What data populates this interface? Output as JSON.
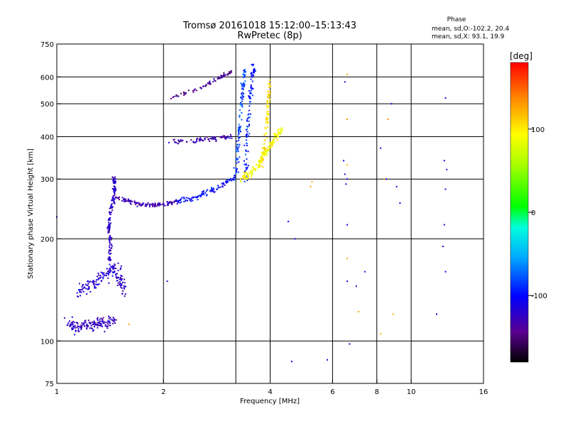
{
  "chart_data": {
    "type": "scatter",
    "title": "Tromsø 20161018 15:12:00–15:13:43",
    "subtitle": "RwPretec (8p)",
    "xlabel": "Frequency [MHz]",
    "ylabel": "Stationary phase Virtual Height [km]",
    "x_scale": "log",
    "y_scale": "log",
    "xlim": [
      1,
      16
    ],
    "ylim": [
      75,
      750
    ],
    "x_ticks": [
      1,
      2,
      4,
      6,
      8,
      10,
      16
    ],
    "x_tick_labels": [
      "1",
      "2",
      "4",
      "6",
      "8",
      "10",
      "16"
    ],
    "y_ticks": [
      75,
      100,
      200,
      300,
      400,
      500,
      600,
      750
    ],
    "y_tick_labels": [
      "75",
      "100",
      "200",
      "300",
      "400",
      "500",
      "600",
      "750"
    ],
    "x_gridlines": [
      2,
      3.2,
      4,
      6,
      8,
      10
    ],
    "y_gridlines": [
      100,
      200,
      300,
      400,
      500,
      600
    ],
    "grid": true,
    "phase_info": {
      "heading": "Phase",
      "line_o": "mean, sd,O:-102.2, 20.4",
      "line_x": "mean, sd,X:  93.1, 19.9"
    },
    "colorbar": {
      "label": "[deg]",
      "range": [
        -180,
        180
      ],
      "ticks": [
        100,
        0,
        -100
      ],
      "tick_labels": [
        "100",
        "0",
        "-100"
      ]
    },
    "series": [
      {
        "kind": "trace",
        "phase": -125,
        "points": [
          [
            1.08,
            115
          ],
          [
            1.12,
            108
          ],
          [
            1.18,
            112
          ],
          [
            1.25,
            110
          ],
          [
            1.32,
            114
          ],
          [
            1.38,
            111
          ],
          [
            1.45,
            116
          ]
        ],
        "spread": [
          0.04,
          0.05
        ]
      },
      {
        "kind": "trace",
        "phase": -120,
        "points": [
          [
            1.15,
            138
          ],
          [
            1.22,
            145
          ],
          [
            1.3,
            150
          ],
          [
            1.38,
            158
          ],
          [
            1.45,
            165
          ],
          [
            1.5,
            152
          ],
          [
            1.55,
            140
          ]
        ],
        "spread": [
          0.05,
          0.06
        ]
      },
      {
        "kind": "trace",
        "phase": -120,
        "points": [
          [
            1.4,
            170
          ],
          [
            1.42,
            190
          ],
          [
            1.4,
            215
          ],
          [
            1.42,
            240
          ],
          [
            1.45,
            265
          ],
          [
            1.46,
            290
          ],
          [
            1.45,
            300
          ]
        ],
        "spread": [
          0.015,
          0.03
        ]
      },
      {
        "kind": "trace",
        "phase": -130,
        "points": [
          [
            1.45,
            265
          ],
          [
            1.6,
            258
          ],
          [
            1.75,
            252
          ],
          [
            1.9,
            252
          ],
          [
            2.05,
            254
          ],
          [
            2.2,
            258
          ]
        ],
        "spread": [
          0.03,
          0.02
        ]
      },
      {
        "kind": "trace",
        "phase": -100,
        "points": [
          [
            2.2,
            258
          ],
          [
            2.45,
            265
          ],
          [
            2.7,
            275
          ],
          [
            2.95,
            290
          ],
          [
            3.2,
            305
          ]
        ],
        "spread": [
          0.025,
          0.03
        ]
      },
      {
        "kind": "trace",
        "phase": -85,
        "points": [
          [
            3.2,
            305
          ],
          [
            3.25,
            380
          ],
          [
            3.3,
            470
          ],
          [
            3.35,
            560
          ],
          [
            3.4,
            630
          ]
        ],
        "spread": [
          0.02,
          0.05
        ]
      },
      {
        "kind": "trace",
        "phase": -95,
        "points": [
          [
            3.4,
            300
          ],
          [
            3.45,
            400
          ],
          [
            3.5,
            500
          ],
          [
            3.55,
            600
          ],
          [
            3.6,
            640
          ]
        ],
        "spread": [
          0.02,
          0.05
        ]
      },
      {
        "kind": "trace",
        "phase": 90,
        "points": [
          [
            3.3,
            300
          ],
          [
            3.5,
            310
          ],
          [
            3.7,
            330
          ],
          [
            3.85,
            355
          ],
          [
            4.0,
            375
          ],
          [
            4.15,
            400
          ],
          [
            4.3,
            420
          ]
        ],
        "spread": [
          0.02,
          0.04
        ]
      },
      {
        "kind": "trace",
        "phase": 105,
        "points": [
          [
            3.8,
            330
          ],
          [
            3.9,
            420
          ],
          [
            3.95,
            500
          ],
          [
            4.0,
            590
          ]
        ],
        "spread": [
          0.015,
          0.05
        ]
      },
      {
        "kind": "trace",
        "phase": -140,
        "points": [
          [
            2.1,
            520
          ],
          [
            2.6,
            560
          ],
          [
            2.9,
            600
          ],
          [
            3.1,
            620
          ]
        ],
        "spread": [
          0.02,
          0.02
        ]
      },
      {
        "kind": "trace",
        "phase": -130,
        "points": [
          [
            2.1,
            385
          ],
          [
            2.5,
            390
          ],
          [
            2.8,
            395
          ],
          [
            3.1,
            400
          ]
        ],
        "spread": [
          0.02,
          0.02
        ]
      },
      {
        "kind": "isolated",
        "phase": -110,
        "points": [
          [
            6.45,
            340
          ],
          [
            6.5,
            310
          ],
          [
            6.6,
            300
          ],
          [
            6.55,
            290
          ],
          [
            6.6,
            220
          ],
          [
            6.5,
            580
          ],
          [
            8.2,
            370
          ],
          [
            8.5,
            300
          ],
          [
            9.1,
            285
          ],
          [
            9.3,
            255
          ],
          [
            8.8,
            500
          ],
          [
            12.5,
            520
          ],
          [
            12.4,
            340
          ],
          [
            12.6,
            320
          ],
          [
            12.5,
            280
          ],
          [
            12.4,
            220
          ],
          [
            12.3,
            190
          ],
          [
            12.5,
            160
          ],
          [
            11.8,
            120
          ],
          [
            6.6,
            150
          ],
          [
            7.0,
            145
          ],
          [
            7.4,
            160
          ],
          [
            4.5,
            225
          ],
          [
            4.7,
            200
          ],
          [
            5.8,
            88
          ],
          [
            6.7,
            98
          ],
          [
            4.6,
            87
          ],
          [
            2.05,
            150
          ],
          [
            1.0,
            232
          ]
        ]
      },
      {
        "kind": "isolated",
        "phase": 130,
        "points": [
          [
            6.6,
            610
          ],
          [
            6.6,
            450
          ],
          [
            6.6,
            330
          ],
          [
            8.6,
            450
          ],
          [
            8.4,
            300
          ],
          [
            5.25,
            295
          ],
          [
            5.2,
            285
          ],
          [
            6.6,
            175
          ],
          [
            7.1,
            122
          ],
          [
            8.9,
            120
          ],
          [
            8.2,
            105
          ],
          [
            1.6,
            112
          ]
        ]
      }
    ]
  }
}
